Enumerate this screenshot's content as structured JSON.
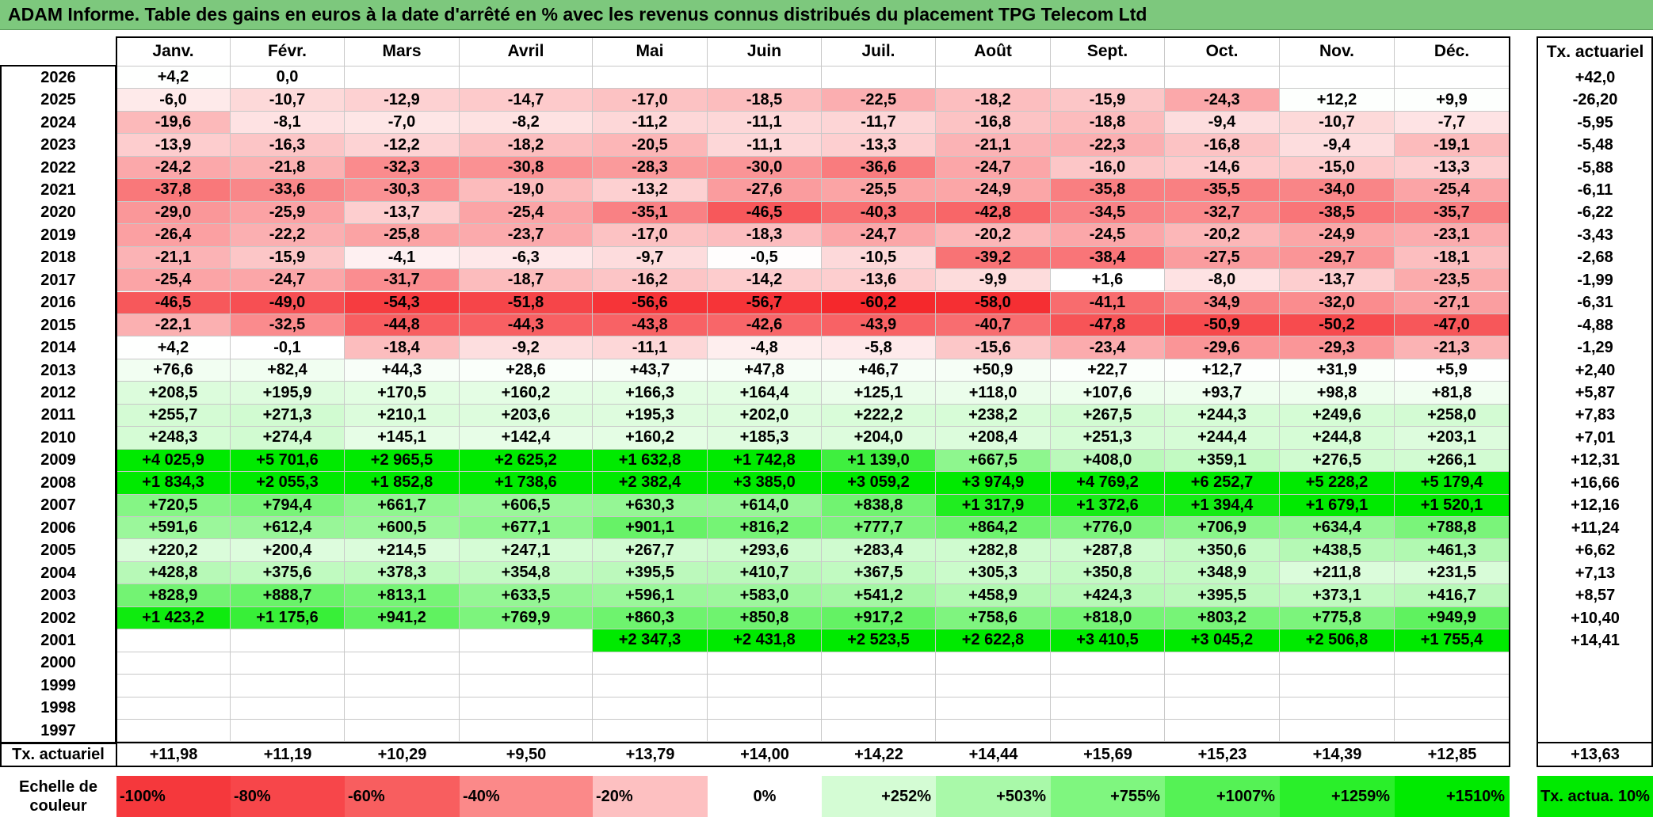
{
  "title": "ADAM Informe. Table des gains en euros à la date d'arrêté en % avec les revenus connus distribués du placement TPG Telecom Ltd",
  "months": [
    "Janv.",
    "Févr.",
    "Mars",
    "Avril",
    "Mai",
    "Juin",
    "Juil.",
    "Août",
    "Sept.",
    "Oct.",
    "Nov.",
    "Déc."
  ],
  "annual_header": "Tx. actuariel",
  "rows": [
    {
      "year": "2026",
      "values": [
        "+4,2",
        "0,0",
        "",
        "",
        "",
        "",
        "",
        "",
        "",
        "",
        "",
        ""
      ],
      "annual": "+42,0"
    },
    {
      "year": "2025",
      "values": [
        "-6,0",
        "-10,7",
        "-12,9",
        "-14,7",
        "-17,0",
        "-18,5",
        "-22,5",
        "-18,2",
        "-15,9",
        "-24,3",
        "+12,2",
        "+9,9"
      ],
      "annual": "-26,20"
    },
    {
      "year": "2024",
      "values": [
        "-19,6",
        "-8,1",
        "-7,0",
        "-8,2",
        "-11,2",
        "-11,1",
        "-11,7",
        "-16,8",
        "-18,8",
        "-9,4",
        "-10,7",
        "-7,7"
      ],
      "annual": "-5,95"
    },
    {
      "year": "2023",
      "values": [
        "-13,9",
        "-16,3",
        "-12,2",
        "-18,2",
        "-20,5",
        "-11,1",
        "-13,3",
        "-21,1",
        "-22,3",
        "-16,8",
        "-9,4",
        "-19,1"
      ],
      "annual": "-5,48"
    },
    {
      "year": "2022",
      "values": [
        "-24,2",
        "-21,8",
        "-32,3",
        "-30,8",
        "-28,3",
        "-30,0",
        "-36,6",
        "-24,7",
        "-16,0",
        "-14,6",
        "-15,0",
        "-13,3"
      ],
      "annual": "-5,88"
    },
    {
      "year": "2021",
      "values": [
        "-37,8",
        "-33,6",
        "-30,3",
        "-19,0",
        "-13,2",
        "-27,6",
        "-25,5",
        "-24,9",
        "-35,8",
        "-35,5",
        "-34,0",
        "-25,4"
      ],
      "annual": "-6,11"
    },
    {
      "year": "2020",
      "values": [
        "-29,0",
        "-25,9",
        "-13,7",
        "-25,4",
        "-35,1",
        "-46,5",
        "-40,3",
        "-42,8",
        "-34,5",
        "-32,7",
        "-38,5",
        "-35,7"
      ],
      "annual": "-6,22"
    },
    {
      "year": "2019",
      "values": [
        "-26,4",
        "-22,2",
        "-25,8",
        "-23,7",
        "-17,0",
        "-18,3",
        "-24,7",
        "-20,2",
        "-24,5",
        "-20,2",
        "-24,9",
        "-23,1"
      ],
      "annual": "-3,43"
    },
    {
      "year": "2018",
      "values": [
        "-21,1",
        "-15,9",
        "-4,1",
        "-6,3",
        "-9,7",
        "-0,5",
        "-10,5",
        "-39,2",
        "-38,4",
        "-27,5",
        "-29,7",
        "-18,1"
      ],
      "annual": "-2,68"
    },
    {
      "year": "2017",
      "values": [
        "-25,4",
        "-24,7",
        "-31,7",
        "-18,7",
        "-16,2",
        "-14,2",
        "-13,6",
        "-9,9",
        "+1,6",
        "-8,0",
        "-13,7",
        "-23,5"
      ],
      "annual": "-1,99"
    },
    {
      "year": "2016",
      "values": [
        "-46,5",
        "-49,0",
        "-54,3",
        "-51,8",
        "-56,6",
        "-56,7",
        "-60,2",
        "-58,0",
        "-41,1",
        "-34,9",
        "-32,0",
        "-27,1"
      ],
      "annual": "-6,31"
    },
    {
      "year": "2015",
      "values": [
        "-22,1",
        "-32,5",
        "-44,8",
        "-44,3",
        "-43,8",
        "-42,6",
        "-43,9",
        "-40,7",
        "-47,8",
        "-50,9",
        "-50,2",
        "-47,0"
      ],
      "annual": "-4,88"
    },
    {
      "year": "2014",
      "values": [
        "+4,2",
        "-0,1",
        "-18,4",
        "-9,2",
        "-11,1",
        "-4,8",
        "-5,8",
        "-15,6",
        "-23,4",
        "-29,6",
        "-29,3",
        "-21,3"
      ],
      "annual": "-1,29"
    },
    {
      "year": "2013",
      "values": [
        "+76,6",
        "+82,4",
        "+44,3",
        "+28,6",
        "+43,7",
        "+47,8",
        "+46,7",
        "+50,9",
        "+22,7",
        "+12,7",
        "+31,9",
        "+5,9"
      ],
      "annual": "+2,40"
    },
    {
      "year": "2012",
      "values": [
        "+208,5",
        "+195,9",
        "+170,5",
        "+160,2",
        "+166,3",
        "+164,4",
        "+125,1",
        "+118,0",
        "+107,6",
        "+93,7",
        "+98,8",
        "+81,8"
      ],
      "annual": "+5,87"
    },
    {
      "year": "2011",
      "values": [
        "+255,7",
        "+271,3",
        "+210,1",
        "+203,6",
        "+195,3",
        "+202,0",
        "+222,2",
        "+238,2",
        "+267,5",
        "+244,3",
        "+249,6",
        "+258,0"
      ],
      "annual": "+7,83"
    },
    {
      "year": "2010",
      "values": [
        "+248,3",
        "+274,4",
        "+145,1",
        "+142,4",
        "+160,2",
        "+185,3",
        "+204,0",
        "+208,4",
        "+251,3",
        "+244,4",
        "+244,8",
        "+203,1"
      ],
      "annual": "+7,01"
    },
    {
      "year": "2009",
      "values": [
        "+4 025,9",
        "+5 701,6",
        "+2 965,5",
        "+2 625,2",
        "+1 632,8",
        "+1 742,8",
        "+1 139,0",
        "+667,5",
        "+408,0",
        "+359,1",
        "+276,5",
        "+266,1"
      ],
      "annual": "+12,31"
    },
    {
      "year": "2008",
      "values": [
        "+1 834,3",
        "+2 055,3",
        "+1 852,8",
        "+1 738,6",
        "+2 382,4",
        "+3 385,0",
        "+3 059,2",
        "+3 974,9",
        "+4 769,2",
        "+6 252,7",
        "+5 228,2",
        "+5 179,4"
      ],
      "annual": "+16,66"
    },
    {
      "year": "2007",
      "values": [
        "+720,5",
        "+794,4",
        "+661,7",
        "+606,5",
        "+630,3",
        "+614,0",
        "+838,8",
        "+1 317,9",
        "+1 372,6",
        "+1 394,4",
        "+1 679,1",
        "+1 520,1"
      ],
      "annual": "+12,16"
    },
    {
      "year": "2006",
      "values": [
        "+591,6",
        "+612,4",
        "+600,5",
        "+677,1",
        "+901,1",
        "+816,2",
        "+777,7",
        "+864,2",
        "+776,0",
        "+706,9",
        "+634,4",
        "+788,8"
      ],
      "annual": "+11,24"
    },
    {
      "year": "2005",
      "values": [
        "+220,2",
        "+200,4",
        "+214,5",
        "+247,1",
        "+267,7",
        "+293,6",
        "+283,4",
        "+282,8",
        "+287,8",
        "+350,6",
        "+438,5",
        "+461,3"
      ],
      "annual": "+6,62"
    },
    {
      "year": "2004",
      "values": [
        "+428,8",
        "+375,6",
        "+378,3",
        "+354,8",
        "+395,5",
        "+410,7",
        "+367,5",
        "+305,3",
        "+350,8",
        "+348,9",
        "+211,8",
        "+231,5"
      ],
      "annual": "+7,13"
    },
    {
      "year": "2003",
      "values": [
        "+828,9",
        "+888,7",
        "+813,1",
        "+633,5",
        "+596,1",
        "+583,0",
        "+541,2",
        "+458,9",
        "+424,3",
        "+395,5",
        "+373,1",
        "+416,7"
      ],
      "annual": "+8,57"
    },
    {
      "year": "2002",
      "values": [
        "+1 423,2",
        "+1 175,6",
        "+941,2",
        "+769,9",
        "+860,3",
        "+850,8",
        "+917,2",
        "+758,6",
        "+818,0",
        "+803,2",
        "+775,8",
        "+949,9"
      ],
      "annual": "+10,40"
    },
    {
      "year": "2001",
      "values": [
        "",
        "",
        "",
        "",
        "+2 347,3",
        "+2 431,8",
        "+2 523,5",
        "+2 622,8",
        "+3 410,5",
        "+3 045,2",
        "+2 506,8",
        "+1 755,4"
      ],
      "annual": "+14,41"
    },
    {
      "year": "2000",
      "values": [
        "",
        "",
        "",
        "",
        "",
        "",
        "",
        "",
        "",
        "",
        "",
        ""
      ],
      "annual": ""
    },
    {
      "year": "1999",
      "values": [
        "",
        "",
        "",
        "",
        "",
        "",
        "",
        "",
        "",
        "",
        "",
        ""
      ],
      "annual": ""
    },
    {
      "year": "1998",
      "values": [
        "",
        "",
        "",
        "",
        "",
        "",
        "",
        "",
        "",
        "",
        "",
        ""
      ],
      "annual": ""
    },
    {
      "year": "1997",
      "values": [
        "",
        "",
        "",
        "",
        "",
        "",
        "",
        "",
        "",
        "",
        "",
        ""
      ],
      "annual": ""
    }
  ],
  "footer": {
    "label": "Tx. actuariel",
    "values": [
      "+11,98",
      "+11,19",
      "+10,29",
      "+9,50",
      "+13,79",
      "+14,00",
      "+14,22",
      "+14,44",
      "+15,69",
      "+15,23",
      "+14,39",
      "+12,85"
    ],
    "annual": "+13,63"
  },
  "legend": {
    "label": "Echelle de couleur",
    "items": [
      {
        "text": "-100%",
        "color": "#f5383c"
      },
      {
        "text": "-80%",
        "color": "#f7464a"
      },
      {
        "text": "-60%",
        "color": "#f85e5f"
      },
      {
        "text": "-40%",
        "color": "#fb8989"
      },
      {
        "text": "-20%",
        "color": "#fdc0c1"
      },
      {
        "text": "0%",
        "color": "#ffffff"
      },
      {
        "text": "+252%",
        "color": "#d4fcd4"
      },
      {
        "text": "+503%",
        "color": "#a9f9a9"
      },
      {
        "text": "+755%",
        "color": "#7ff67f"
      },
      {
        "text": "+1007%",
        "color": "#55f255"
      },
      {
        "text": "+1259%",
        "color": "#2aef2a"
      },
      {
        "text": "+1510%",
        "color": "#00ea00"
      }
    ],
    "annual_label": "Tx. actua. 10%",
    "annual_color": "#00ea00"
  },
  "colors": {
    "title_bar": "#7dc87d",
    "negative_max": "#f5383c",
    "positive_max": "#00ea00",
    "neutral": "#ffffff"
  }
}
